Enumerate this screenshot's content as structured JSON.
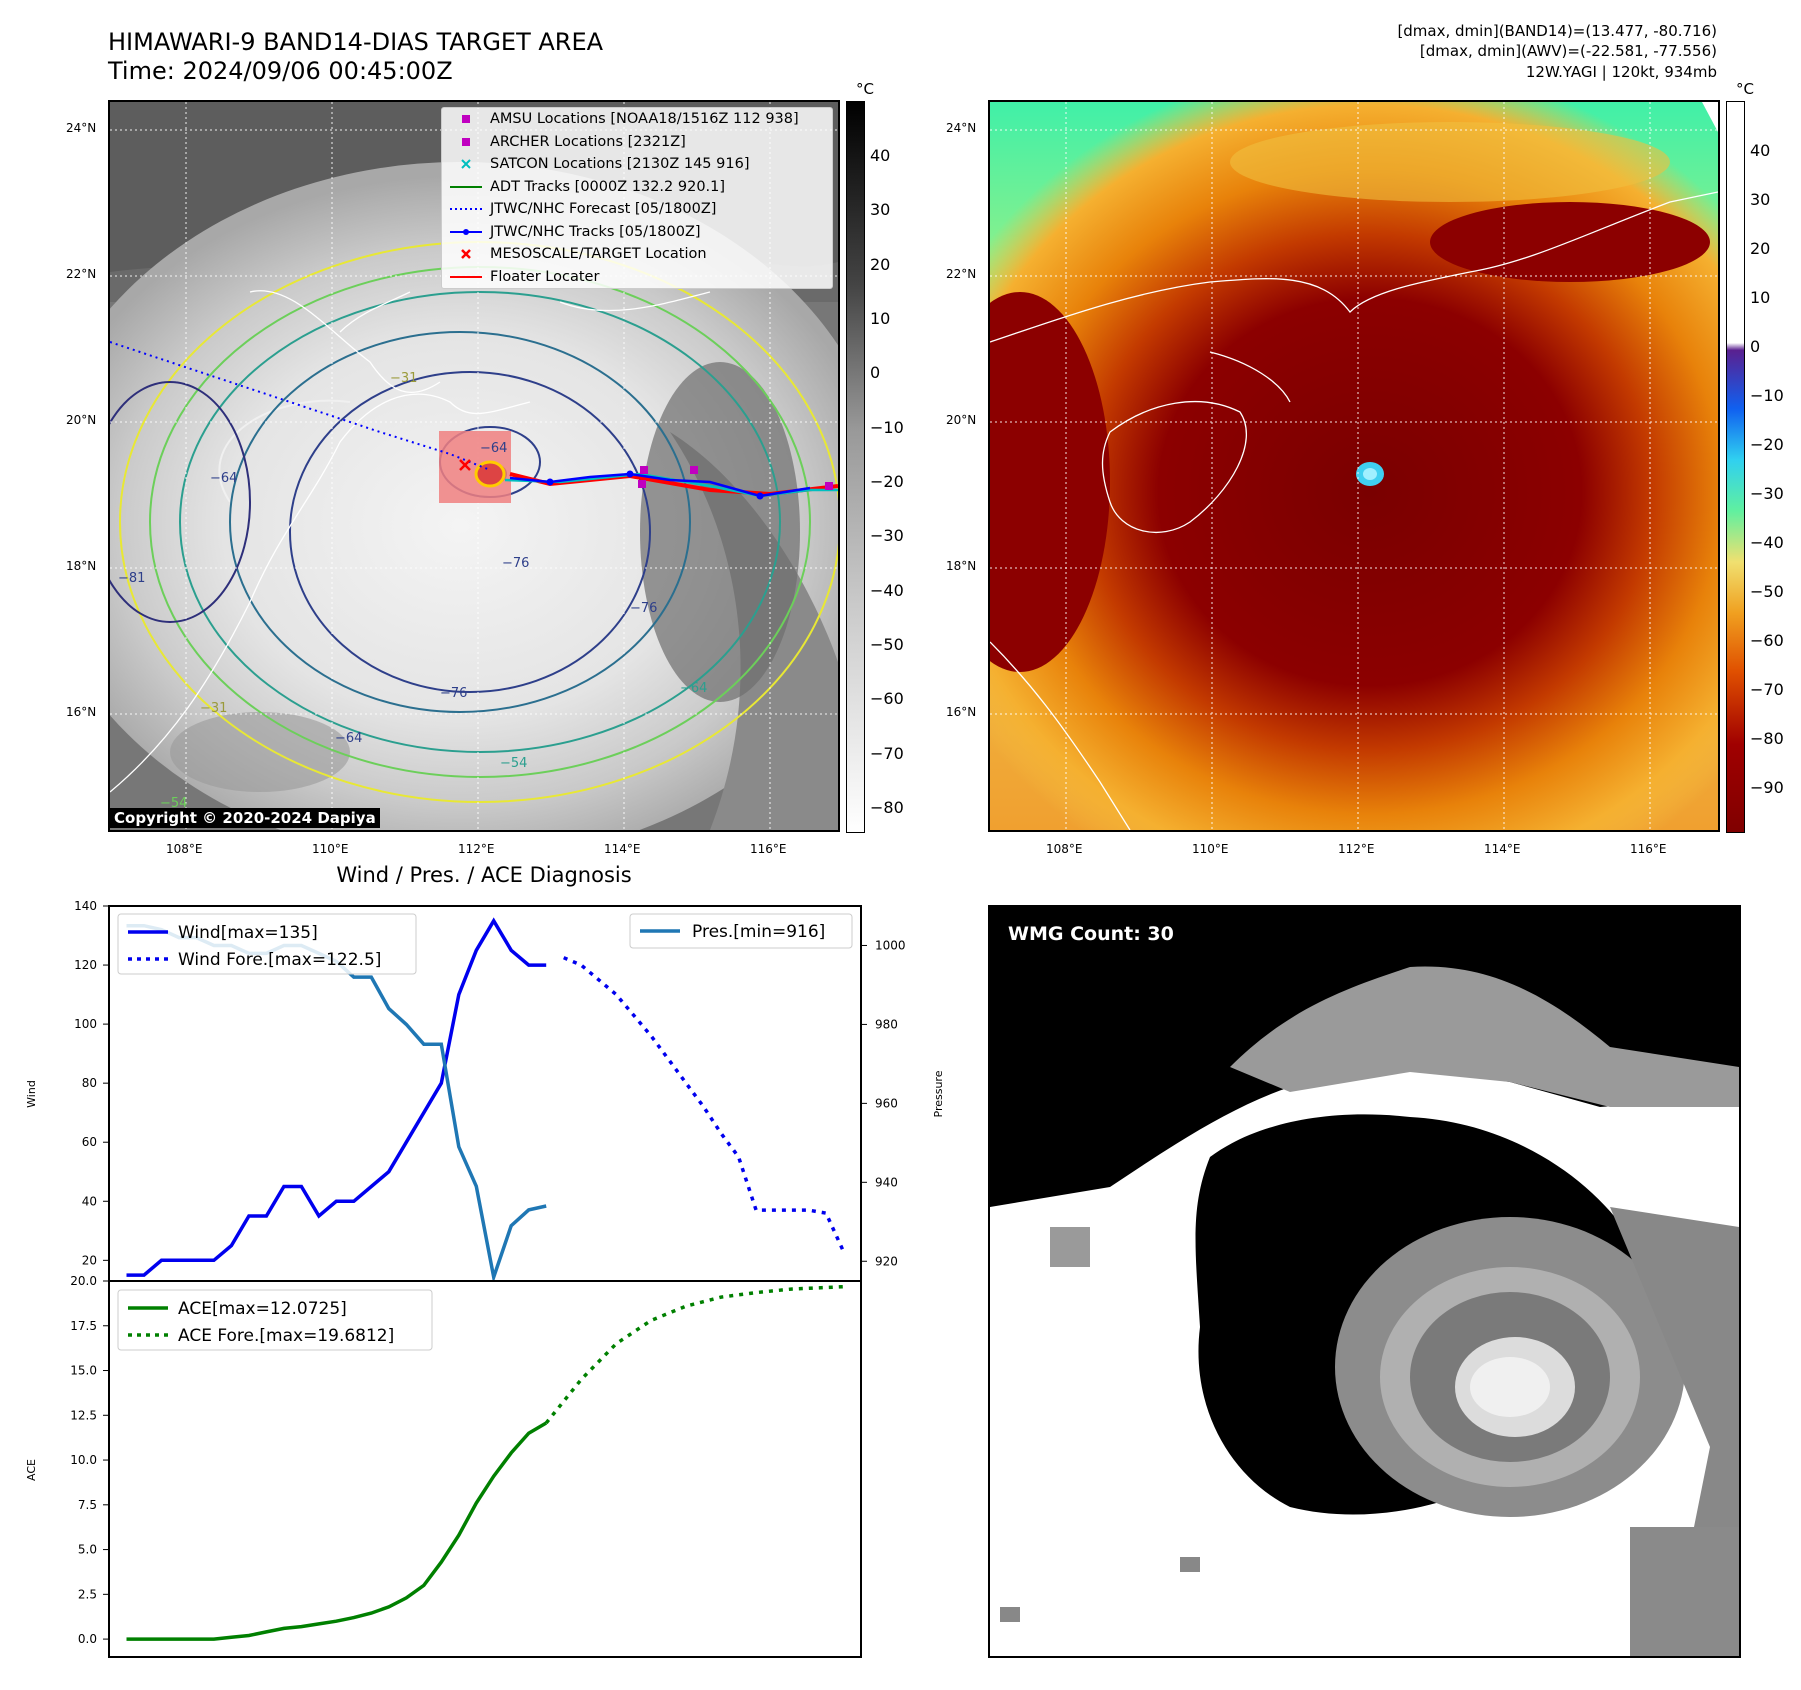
{
  "header": {
    "title_line1": "HIMAWARI-9 BAND14-DIAS TARGET AREA",
    "title_line2": "Time: 2024/09/06 00:45:00Z",
    "right_line1": "[dmax, dmin](BAND14)=(13.477, -80.716)",
    "right_line2": "[dmax, dmin](AWV)=(-22.581, -77.556)",
    "right_line3": "12W.YAGI | 120kt, 934mb"
  },
  "map_axes": {
    "lat_labels": [
      "24°N",
      "22°N",
      "20°N",
      "18°N",
      "16°N"
    ],
    "lon_labels": [
      "108°E",
      "110°E",
      "112°E",
      "114°E",
      "116°E"
    ]
  },
  "ir_panel": {
    "colorbar_unit": "°C",
    "colorbar_ticks": [
      "40",
      "30",
      "20",
      "10",
      "0",
      "−10",
      "−20",
      "−30",
      "−40",
      "−50",
      "−60",
      "−70",
      "−80"
    ],
    "contour_labels": [
      "−64",
      "−81",
      "−76",
      "−76",
      "−76",
      "−64",
      "−64",
      "−31",
      "−54",
      "−64",
      "−54",
      "−31"
    ],
    "legend": [
      {
        "label": "AMSU Locations [NOAA18/1516Z 112 938]",
        "color": "#c000c0",
        "symbol": "square"
      },
      {
        "label": "ARCHER Locations [2321Z]",
        "color": "#c000c0",
        "symbol": "square"
      },
      {
        "label": "SATCON Locations [2130Z 145 916]",
        "color": "#00bfbf",
        "symbol": "x"
      },
      {
        "label": "ADT Tracks [0000Z 132.2 920.1]",
        "color": "#008000",
        "symbol": "line"
      },
      {
        "label": "JTWC/NHC Forecast [05/1800Z]",
        "color": "#0000ff",
        "symbol": "dotted"
      },
      {
        "label": "JTWC/NHC Tracks [05/1800Z]",
        "color": "#0000ff",
        "symbol": "line-dot"
      },
      {
        "label": "MESOSCALE/TARGET Location",
        "color": "#ff0000",
        "symbol": "x"
      },
      {
        "label": "Floater Locater",
        "color": "#ff0000",
        "symbol": "line"
      }
    ],
    "copyright": "Copyright © 2020-2024 Dapiya"
  },
  "awv_panel": {
    "colorbar_unit": "°C",
    "colorbar_ticks": [
      "40",
      "30",
      "20",
      "10",
      "0",
      "−10",
      "−20",
      "−30",
      "−40",
      "−50",
      "−60",
      "−70",
      "−80",
      "−90"
    ]
  },
  "diag": {
    "title": "Wind / Pres. / ACE Diagnosis",
    "wind_ylabel": "Wind",
    "pres_ylabel": "Pressure",
    "ace_ylabel": "ACE",
    "wind_legend": [
      "Wind[max=135]",
      "Wind Fore.[max=122.5]"
    ],
    "pres_legend": "Pres.[min=916]",
    "ace_legend": [
      "ACE[max=12.0725]",
      "ACE Fore.[max=19.6812]"
    ]
  },
  "wmg": {
    "label": "WMG Count: 30"
  },
  "chart_data": [
    {
      "type": "line",
      "title": "Wind / Pres. / ACE Diagnosis",
      "ylabel": "Wind",
      "ylim": [
        13,
        140
      ],
      "yticks": [
        20,
        40,
        60,
        80,
        100,
        120,
        140
      ],
      "series": [
        {
          "name": "Wind[max=135]",
          "style": "solid",
          "color": "#0000ee",
          "x": [
            0,
            1,
            2,
            3,
            4,
            5,
            6,
            7,
            8,
            9,
            10,
            11,
            12,
            13,
            14,
            15,
            16,
            17,
            18,
            19,
            20,
            21,
            22,
            23,
            24,
            25,
            26,
            27
          ],
          "values": [
            15,
            15,
            20,
            20,
            20,
            20,
            25,
            35,
            35,
            45,
            45,
            35,
            40,
            40,
            45,
            50,
            60,
            70,
            80,
            110,
            125,
            135,
            125,
            120,
            120,
            null,
            null,
            null
          ]
        },
        {
          "name": "Wind Fore.[max=122.5]",
          "style": "dotted",
          "color": "#0000ee",
          "x": [
            25,
            26,
            27,
            28,
            29,
            30,
            31,
            32,
            33,
            34,
            35,
            36,
            37,
            38,
            39,
            40,
            41
          ],
          "values": [
            122.5,
            120,
            115,
            110,
            103,
            96,
            88,
            80,
            72,
            63,
            55,
            37,
            37,
            37,
            37,
            36,
            23
          ]
        },
        {
          "name": "Pres.[min=916]",
          "style": "solid",
          "color": "#1f77b4",
          "axis": "right",
          "x": [
            0,
            1,
            2,
            3,
            4,
            5,
            6,
            7,
            8,
            9,
            10,
            11,
            12,
            13,
            14,
            15,
            16,
            17,
            18,
            19,
            20,
            21,
            22,
            23,
            24
          ],
          "values": [
            1005,
            1005,
            1004,
            1002,
            1002,
            1000,
            1000,
            998,
            998,
            1000,
            1000,
            998,
            996,
            992,
            992,
            984,
            980,
            975,
            975,
            949,
            939,
            916,
            929,
            933,
            934
          ]
        }
      ],
      "pres_ylim": [
        915,
        1010
      ],
      "pres_yticks": [
        920,
        940,
        960,
        980,
        1000
      ]
    },
    {
      "type": "line",
      "ylabel": "ACE",
      "ylim": [
        -1,
        20
      ],
      "yticks": [
        0.0,
        2.5,
        5.0,
        7.5,
        10.0,
        12.5,
        15.0,
        17.5,
        20.0
      ],
      "series": [
        {
          "name": "ACE[max=12.0725]",
          "style": "solid",
          "color": "#008000",
          "x": [
            0,
            1,
            2,
            3,
            4,
            5,
            6,
            7,
            8,
            9,
            10,
            11,
            12,
            13,
            14,
            15,
            16,
            17,
            18,
            19,
            20,
            21,
            22,
            23,
            24
          ],
          "values": [
            0,
            0,
            0,
            0,
            0,
            0,
            0.1,
            0.2,
            0.4,
            0.6,
            0.7,
            0.85,
            1.0,
            1.2,
            1.45,
            1.8,
            2.3,
            3.0,
            4.3,
            5.8,
            7.6,
            9.1,
            10.4,
            11.5,
            12.07
          ]
        },
        {
          "name": "ACE Fore.[max=19.6812]",
          "style": "dotted",
          "color": "#008000",
          "x": [
            24,
            26,
            28,
            30,
            32,
            34,
            36,
            38,
            41
          ],
          "values": [
            12.07,
            14.5,
            16.5,
            17.8,
            18.6,
            19.1,
            19.35,
            19.55,
            19.68
          ]
        }
      ]
    }
  ]
}
